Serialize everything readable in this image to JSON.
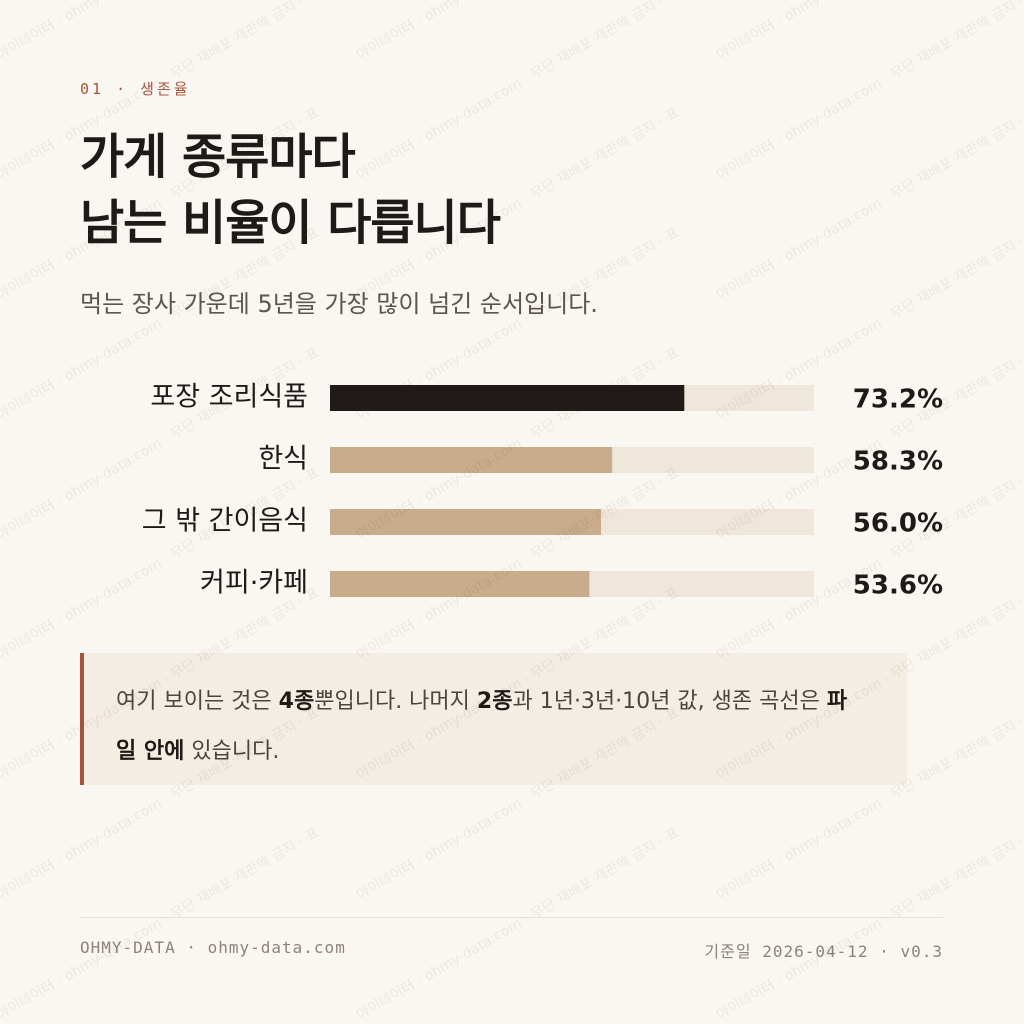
{
  "eyebrow": "01 · 생존율",
  "title_lines": [
    "가게 종류마다",
    "남는 비율이 다릅니다"
  ],
  "subtitle": "먹는 장사 가운데 5년을 가장 많이 넘긴 순서입니다.",
  "chart_data": {
    "type": "bar",
    "orientation": "horizontal",
    "categories": [
      "포장 조리식품",
      "한식",
      "그 밖 간이음식",
      "커피·카페"
    ],
    "values": [
      73.2,
      58.3,
      56.0,
      53.6
    ],
    "value_labels": [
      "73.2%",
      "58.3%",
      "56.0%",
      "53.6%"
    ],
    "colors": [
      "#201b18",
      "#c9ac8b",
      "#c9ac8b",
      "#c9ac8b"
    ],
    "track_color": "#f0e7db",
    "xlim": [
      0,
      100
    ]
  },
  "note": [
    {
      "text": "여기 보이는 것은 ",
      "bold": false
    },
    {
      "text": "4종",
      "bold": true
    },
    {
      "text": "뿐입니다. 나머지 ",
      "bold": false
    },
    {
      "text": "2종",
      "bold": true
    },
    {
      "text": "과 1년·3년·10년 값, 생존 곡선은 ",
      "bold": false
    },
    {
      "text": "파일 안에",
      "bold": true
    },
    {
      "text": " 있습니다.",
      "bold": false
    }
  ],
  "footer": {
    "left": "OHMY-DATA · ohmy-data.com",
    "right_label": "기준일",
    "right_value": "2026-04-12 · v0.3"
  },
  "watermark": "아이데이터 · ohmy-data.com · 무단 재배포·재판매 금지 · 표"
}
